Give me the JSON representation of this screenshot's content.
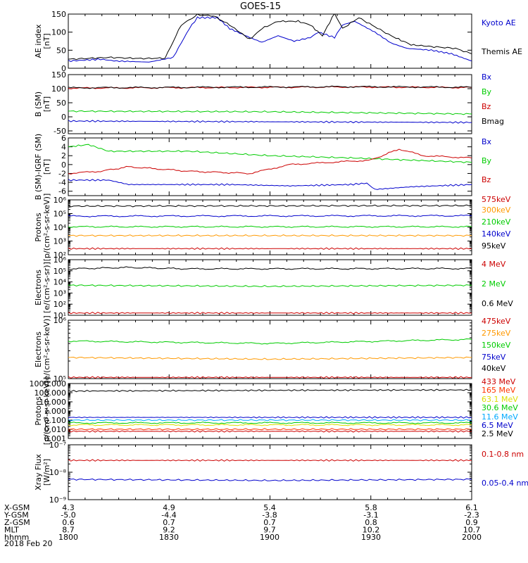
{
  "figure": {
    "title": "GOES-15",
    "date": "2018 Feb 20",
    "orbit_rows": [
      {
        "label": "X-GSM",
        "values": [
          "4.3",
          "4.9",
          "5.4",
          "5.8",
          "6.1"
        ]
      },
      {
        "label": "Y-GSM",
        "values": [
          "-5.0",
          "-4.4",
          "-3.8",
          "-3.1",
          "-2.3"
        ]
      },
      {
        "label": "Z-GSM",
        "values": [
          "0.6",
          "0.7",
          "0.7",
          "0.8",
          "0.9"
        ]
      },
      {
        "label": "MLT",
        "values": [
          "8.7",
          "9.2",
          "9.7",
          "10.2",
          "10.7"
        ]
      },
      {
        "label": "hhmm",
        "values": [
          "1800",
          "1830",
          "1900",
          "1930",
          "2000"
        ]
      }
    ]
  },
  "chart_data": [
    {
      "type": "line",
      "ylabel": "AE index\n[nT]",
      "ylim": [
        0,
        150
      ],
      "yscale": "linear",
      "yticks": [
        0,
        50,
        100,
        150
      ],
      "ytick_labels": [
        "0",
        "50",
        "100",
        "150"
      ],
      "x": "time 1800-2000 UT",
      "series": [
        {
          "name": "Kyoto AE",
          "color": "#0000cc",
          "keypoints": [
            [
              0,
              20
            ],
            [
              8,
              25
            ],
            [
              12,
              20
            ],
            [
              20,
              17
            ],
            [
              26,
              30
            ],
            [
              30,
              110
            ],
            [
              32,
              140
            ],
            [
              37,
              140
            ],
            [
              40,
              110
            ],
            [
              45,
              85
            ],
            [
              48,
              72
            ],
            [
              52,
              90
            ],
            [
              56,
              75
            ],
            [
              60,
              85
            ],
            [
              62,
              100
            ],
            [
              66,
              85
            ],
            [
              68,
              120
            ],
            [
              71,
              130
            ],
            [
              76,
              100
            ],
            [
              80,
              70
            ],
            [
              84,
              55
            ],
            [
              90,
              50
            ],
            [
              95,
              40
            ],
            [
              100,
              20
            ]
          ]
        },
        {
          "name": "Themis AE",
          "color": "#000000",
          "keypoints": [
            [
              0,
              25
            ],
            [
              10,
              30
            ],
            [
              18,
              27
            ],
            [
              24,
              28
            ],
            [
              28,
              120
            ],
            [
              32,
              148
            ],
            [
              36,
              145
            ],
            [
              40,
              120
            ],
            [
              45,
              80
            ],
            [
              48,
              110
            ],
            [
              52,
              130
            ],
            [
              57,
              130
            ],
            [
              60,
              120
            ],
            [
              63,
              90
            ],
            [
              66,
              152
            ],
            [
              68,
              110
            ],
            [
              72,
              140
            ],
            [
              76,
              115
            ],
            [
              80,
              90
            ],
            [
              85,
              65
            ],
            [
              90,
              60
            ],
            [
              96,
              55
            ],
            [
              100,
              40
            ]
          ]
        }
      ]
    },
    {
      "type": "line",
      "ylabel": "B (SM)\n[nT]",
      "ylim": [
        -60,
        150
      ],
      "yscale": "linear",
      "yticks": [
        -50,
        0,
        50,
        100,
        150
      ],
      "ytick_labels": [
        "-50",
        "0",
        "50",
        "100",
        "150"
      ],
      "series": [
        {
          "name": "Bx",
          "color": "#0000cc",
          "keypoints": [
            [
              0,
              -15
            ],
            [
              100,
              -20
            ]
          ]
        },
        {
          "name": "By",
          "color": "#00cc00",
          "keypoints": [
            [
              0,
              20
            ],
            [
              50,
              18
            ],
            [
              100,
              10
            ]
          ]
        },
        {
          "name": "Bz",
          "color": "#cc0000",
          "keypoints": [
            [
              0,
              102
            ],
            [
              70,
              106
            ],
            [
              100,
              104
            ]
          ]
        },
        {
          "name": "Bmag",
          "color": "#000000",
          "keypoints": [
            [
              0,
              103
            ],
            [
              70,
              107
            ],
            [
              100,
              105
            ]
          ]
        }
      ]
    },
    {
      "type": "line",
      "ylabel": "B (SM)-IGRF (SM)\n[nT]",
      "ylim": [
        -7,
        6
      ],
      "yscale": "linear",
      "yticks": [
        -6,
        -4,
        -2,
        0,
        2,
        4,
        6
      ],
      "ytick_labels": [
        "-6",
        "-4",
        "-2",
        "0",
        "2",
        "4",
        "6"
      ],
      "series": [
        {
          "name": "Bx",
          "color": "#0000cc",
          "keypoints": [
            [
              0,
              -3.5
            ],
            [
              10,
              -3.5
            ],
            [
              15,
              -4.5
            ],
            [
              25,
              -4.5
            ],
            [
              40,
              -4.5
            ],
            [
              55,
              -4.8
            ],
            [
              70,
              -4.5
            ],
            [
              74,
              -4.2
            ],
            [
              76,
              -5.6
            ],
            [
              85,
              -5
            ],
            [
              100,
              -4.5
            ]
          ]
        },
        {
          "name": "By",
          "color": "#00cc00",
          "keypoints": [
            [
              0,
              4
            ],
            [
              5,
              4.5
            ],
            [
              10,
              3
            ],
            [
              30,
              3
            ],
            [
              50,
              2
            ],
            [
              70,
              1.5
            ],
            [
              85,
              1
            ],
            [
              100,
              0.5
            ]
          ]
        },
        {
          "name": "Bz",
          "color": "#cc0000",
          "keypoints": [
            [
              0,
              -2
            ],
            [
              8,
              -1.5
            ],
            [
              15,
              -0.5
            ],
            [
              30,
              -1.5
            ],
            [
              45,
              -2
            ],
            [
              55,
              0
            ],
            [
              65,
              0.5
            ],
            [
              75,
              1
            ],
            [
              82,
              3.5
            ],
            [
              88,
              2
            ],
            [
              100,
              1.5
            ]
          ]
        }
      ]
    },
    {
      "type": "line",
      "ylabel": "Protons\n[p/(cm²-s-sr-keV)]",
      "ylim": [
        100,
        1000000
      ],
      "yscale": "log",
      "yticks": [
        100,
        1000,
        10000,
        100000,
        1000000
      ],
      "ytick_labels": [
        "10²",
        "10³",
        "10⁴",
        "10⁵",
        "10⁶"
      ],
      "series": [
        {
          "name": "575keV",
          "color": "#cc0000",
          "keypoints": [
            [
              0,
              280
            ],
            [
              100,
              280
            ]
          ]
        },
        {
          "name": "300keV",
          "color": "#ff9900",
          "keypoints": [
            [
              0,
              2500
            ],
            [
              100,
              2500
            ]
          ]
        },
        {
          "name": "210keV",
          "color": "#00cc00",
          "keypoints": [
            [
              0,
              11000
            ],
            [
              100,
              11000
            ]
          ]
        },
        {
          "name": "140keV",
          "color": "#0000cc",
          "keypoints": [
            [
              0,
              65000
            ],
            [
              100,
              70000
            ]
          ]
        },
        {
          "name": "95keV",
          "color": "#000000",
          "keypoints": [
            [
              0,
              350000
            ],
            [
              100,
              380000
            ]
          ]
        }
      ]
    },
    {
      "type": "line",
      "ylabel": "Electrons\n[e/(cm²-s-sr)]",
      "ylim": [
        10,
        1000000
      ],
      "yscale": "log",
      "yticks": [
        10,
        100,
        1000,
        10000,
        100000,
        1000000
      ],
      "ytick_labels": [
        "10¹",
        "10²",
        "10³",
        "10⁴",
        "10⁵",
        "10⁶"
      ],
      "series": [
        {
          "name": "4 MeV",
          "color": "#cc0000",
          "keypoints": [
            [
              0,
              16
            ],
            [
              100,
              16
            ]
          ]
        },
        {
          "name": "2 MeV",
          "color": "#00cc00",
          "keypoints": [
            [
              0,
              5000
            ],
            [
              50,
              4000
            ],
            [
              100,
              5000
            ]
          ]
        },
        {
          "name": "0.6 MeV",
          "color": "#000000",
          "keypoints": [
            [
              0,
              150000
            ],
            [
              15,
              200000
            ],
            [
              30,
              150000
            ],
            [
              100,
              160000
            ]
          ]
        }
      ]
    },
    {
      "type": "line",
      "ylabel": "Electrons\n[e/(cm²-s-sr-keV)]",
      "ylim": [
        100000,
        1000000
      ],
      "yscale": "log",
      "yticks": [
        100000,
        1000000
      ],
      "ytick_labels": [
        "10⁵",
        "10⁶"
      ],
      "series": [
        {
          "name": "475keV",
          "color": "#cc0000",
          "keypoints": [
            [
              0,
              105000
            ],
            [
              100,
              105000
            ]
          ]
        },
        {
          "name": "275keV",
          "color": "#ff9900",
          "keypoints": [
            [
              0,
              230000
            ],
            [
              50,
              215000
            ],
            [
              100,
              230000
            ]
          ]
        },
        {
          "name": "150keV",
          "color": "#00cc00",
          "keypoints": [
            [
              0,
              440000
            ],
            [
              50,
              400000
            ],
            [
              100,
              470000
            ]
          ]
        },
        {
          "name": "75keV",
          "color": "#0000cc",
          "keypoints": []
        },
        {
          "name": "40keV",
          "color": "#000000",
          "keypoints": []
        }
      ]
    },
    {
      "type": "line",
      "ylabel": "Protons\n[p/(cm²-s-sr-keV)]",
      "ylim": [
        0.001,
        1000
      ],
      "yscale": "log",
      "yticks": [
        0.001,
        0.01,
        0.1,
        1,
        10,
        100,
        1000
      ],
      "ytick_labels": [
        "0.001",
        "0.010",
        "0.100",
        "1.000",
        "10.000",
        "100.000",
        "1000.000"
      ],
      "series": [
        {
          "name": "433 MeV",
          "color": "#cc0000",
          "keypoints": [
            [
              0,
              0.006
            ],
            [
              100,
              0.006
            ]
          ]
        },
        {
          "name": "165 MeV",
          "color": "#ff3300",
          "keypoints": [
            [
              0,
              0.01
            ],
            [
              100,
              0.01
            ]
          ]
        },
        {
          "name": "63.1 MeV",
          "color": "#dddd00",
          "keypoints": [
            [
              0,
              0.03
            ],
            [
              100,
              0.03
            ]
          ]
        },
        {
          "name": "30.6 MeV",
          "color": "#00cc00",
          "keypoints": [
            [
              0,
              0.05
            ],
            [
              100,
              0.05
            ]
          ]
        },
        {
          "name": "11.6 MeV",
          "color": "#00aaff",
          "keypoints": [
            [
              0,
              0.1
            ],
            [
              100,
              0.1
            ]
          ]
        },
        {
          "name": "6.5 MeV",
          "color": "#0000cc",
          "keypoints": [
            [
              0,
              0.2
            ],
            [
              100,
              0.2
            ]
          ]
        },
        {
          "name": "2.5 MeV",
          "color": "#000000",
          "keypoints": [
            [
              0,
              150
            ],
            [
              50,
              180
            ],
            [
              100,
              200
            ]
          ]
        }
      ]
    },
    {
      "type": "line",
      "ylabel": "Xray Flux\n[W/m²]",
      "ylim": [
        1e-09,
        1e-07
      ],
      "yscale": "log",
      "yticks": [
        1e-09,
        1e-08,
        1e-07
      ],
      "ytick_labels": [
        "10⁻⁹",
        "10⁻⁸",
        "10⁻⁷"
      ],
      "series": [
        {
          "name": "0.1-0.8 nm",
          "color": "#cc0000",
          "keypoints": [
            [
              0,
              2.7e-08
            ],
            [
              100,
              2.7e-08
            ]
          ]
        },
        {
          "name": "0.05-0.4 nm",
          "color": "#0000cc",
          "keypoints": [
            [
              0,
              5.5e-09
            ],
            [
              50,
              5e-09
            ],
            [
              100,
              5.5e-09
            ]
          ]
        }
      ]
    }
  ]
}
